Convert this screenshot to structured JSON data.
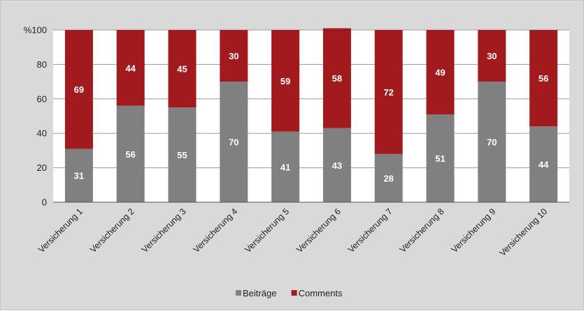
{
  "chart_data": {
    "type": "bar",
    "stacked": true,
    "y_tick_labels": [
      "%100",
      "80",
      "60",
      "40",
      "20",
      "0"
    ],
    "ylim": [
      0,
      100
    ],
    "grid": true,
    "legend_position": "bottom",
    "categories": [
      "Versicherung 1",
      "Versicherung 2",
      "Versicherung 3",
      "Versicherung 4",
      "Versicherung 5",
      "Versicherung 6",
      "Versicherung 7",
      "Versicherung 8",
      "Versicherung 9",
      "Versicherung 10"
    ],
    "series": [
      {
        "name": "Beiträge",
        "color": "#808080",
        "values": [
          31,
          56,
          55,
          70,
          41,
          43,
          28,
          51,
          70,
          44
        ]
      },
      {
        "name": "Comments",
        "color": "#a01a1e",
        "values": [
          69,
          44,
          45,
          30,
          59,
          58,
          72,
          49,
          30,
          56
        ]
      }
    ]
  }
}
